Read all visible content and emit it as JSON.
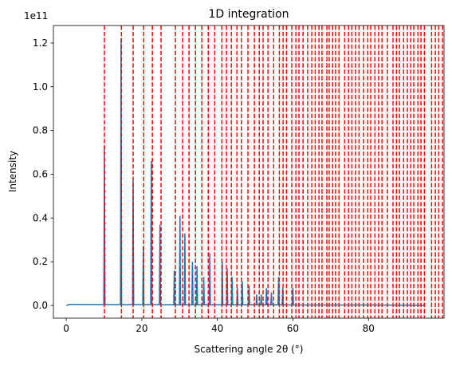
{
  "chart_data": {
    "type": "line",
    "title": "1D integration",
    "x_label": "Scattering angle 2θ (°)",
    "y_label": "Intensity",
    "y_offset_label": "1e11",
    "x": [
      0,
      1,
      2,
      9.95,
      10.1,
      10.25,
      14.35,
      14.5,
      14.65,
      17.55,
      17.7,
      17.85,
      20.25,
      20.4,
      20.55,
      22.35,
      22.5,
      22.65,
      24.65,
      24.8,
      24.95,
      28.45,
      28.6,
      28.75,
      29.95,
      30.1,
      30.25,
      31.25,
      31.4,
      31.55,
      33.25,
      33.4,
      33.55,
      34.45,
      34.6,
      34.75,
      36.25,
      36.4,
      36.55,
      37.85,
      38.0,
      38.15,
      41.15,
      41.3,
      41.45,
      42.45,
      42.6,
      42.75,
      43.75,
      43.9,
      44.05,
      45.15,
      45.3,
      45.45,
      46.45,
      46.6,
      46.75,
      48.25,
      48.4,
      48.55,
      50.25,
      50.4,
      50.55,
      51.45,
      51.6,
      51.75,
      52.85,
      53.0,
      53.15,
      54.15,
      54.3,
      54.45,
      56.05,
      56.2,
      56.35,
      57.15,
      57.3,
      57.45,
      59.85,
      60.0,
      60.15,
      70,
      80,
      95
    ],
    "series": [
      {
        "name": "Intensity",
        "color": "#1f77b4",
        "values": [
          0,
          0.005,
          0.005,
          0.004,
          0.73,
          0.004,
          0.004,
          1.22,
          0.004,
          0.004,
          0.57,
          0.004,
          0.004,
          0.27,
          0.004,
          0.004,
          0.66,
          0.004,
          0.004,
          0.37,
          0.004,
          0.003,
          0.16,
          0.003,
          0.003,
          0.41,
          0.003,
          0.003,
          0.33,
          0.003,
          0.003,
          0.2,
          0.003,
          0.003,
          0.18,
          0.003,
          0.003,
          0.13,
          0.003,
          0.003,
          0.24,
          0.003,
          0.003,
          0.2,
          0.003,
          0.003,
          0.17,
          0.003,
          0.003,
          0.13,
          0.003,
          0.003,
          0.08,
          0.003,
          0.003,
          0.11,
          0.003,
          0.003,
          0.09,
          0.003,
          0.003,
          0.05,
          0.003,
          0.003,
          0.05,
          0.003,
          0.003,
          0.08,
          0.003,
          0.003,
          0.06,
          0.003,
          0.003,
          0.13,
          0.003,
          0.003,
          0.08,
          0.003,
          0.002,
          0.08,
          0.002,
          0.002,
          0.002,
          0.001
        ]
      }
    ],
    "reference_lines": {
      "color": "#ff0000",
      "x": [
        10.1,
        14.6,
        17.7,
        20.5,
        22.8,
        25.1,
        28.9,
        30.8,
        32.5,
        34.2,
        35.9,
        37.6,
        39.3,
        41.2,
        42.4,
        43.7,
        45.2,
        46.4,
        48.1,
        49.8,
        51.1,
        52.1,
        53.4,
        54.9,
        56.4,
        57.4,
        58.3,
        59.7,
        60.8,
        61.6,
        62.7,
        63.9,
        65.0,
        65.9,
        66.9,
        67.7,
        69.0,
        69.6,
        70.5,
        71.3,
        72.2,
        73.7,
        74.7,
        75.6,
        76.6,
        77.5,
        78.7,
        79.8,
        80.6,
        81.7,
        82.7,
        83.6,
        85.0,
        86.5,
        87.4,
        88.2,
        89.3,
        90.3,
        91.2,
        92.0,
        93.1,
        93.9,
        94.8,
        96.7,
        97.7,
        98.6,
        99.6
      ]
    },
    "xlim": [
      -3.4,
      100
    ],
    "ylim": [
      -0.058,
      1.28
    ],
    "xticks": [
      0,
      20,
      40,
      60,
      80
    ],
    "yticks": [
      {
        "value": 0,
        "label": "0.0"
      },
      {
        "value": 0.2,
        "label": "0.2"
      },
      {
        "value": 0.4,
        "label": "0.4"
      },
      {
        "value": 0.6,
        "label": "0.6"
      },
      {
        "value": 0.8,
        "label": "0.8"
      },
      {
        "value": 1.0,
        "label": "1.0"
      },
      {
        "value": 1.2,
        "label": "1.2"
      }
    ]
  }
}
